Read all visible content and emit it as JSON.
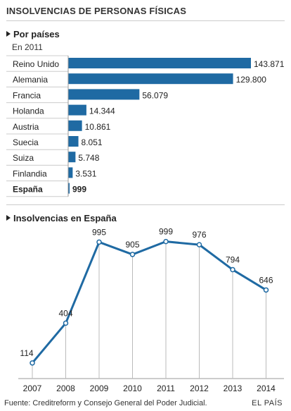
{
  "header": {
    "title": "INSOLVENCIAS DE PERSONAS FÍSICAS"
  },
  "bars_section": {
    "title": "Por países",
    "subtitle": "En 2011"
  },
  "line_section": {
    "title": "Insolvencias en España"
  },
  "footer": {
    "source": "Fuente: Creditreform y Consejo General del Poder Judicial.",
    "brand": "EL PAÍS"
  },
  "colors": {
    "bar": "#1f6aa3",
    "line": "#1f6aa3",
    "grid": "#bbbbbb"
  },
  "chart_data": [
    {
      "type": "bar",
      "orientation": "horizontal",
      "title": "Por países",
      "subtitle": "En 2011",
      "categories": [
        "Reino Unido",
        "Alemania",
        "Francia",
        "Holanda",
        "Austria",
        "Suecia",
        "Suiza",
        "Finlandia",
        "España"
      ],
      "values": [
        143871,
        129800,
        56079,
        14344,
        10861,
        8051,
        5748,
        3531,
        999
      ],
      "value_labels": [
        "143.871",
        "129.800",
        "56.079",
        "14.344",
        "10.861",
        "8.051",
        "5.748",
        "3.531",
        "999"
      ],
      "highlight": "España",
      "xlim": [
        0,
        143871
      ]
    },
    {
      "type": "line",
      "title": "Insolvencias en España",
      "x": [
        "2007",
        "2008",
        "2009",
        "2010",
        "2011",
        "2012",
        "2013",
        "2014"
      ],
      "series": [
        {
          "values": [
            114,
            404,
            995,
            905,
            999,
            976,
            794,
            646
          ]
        }
      ],
      "ylim": [
        0,
        1100
      ],
      "grid": "vertical"
    }
  ]
}
